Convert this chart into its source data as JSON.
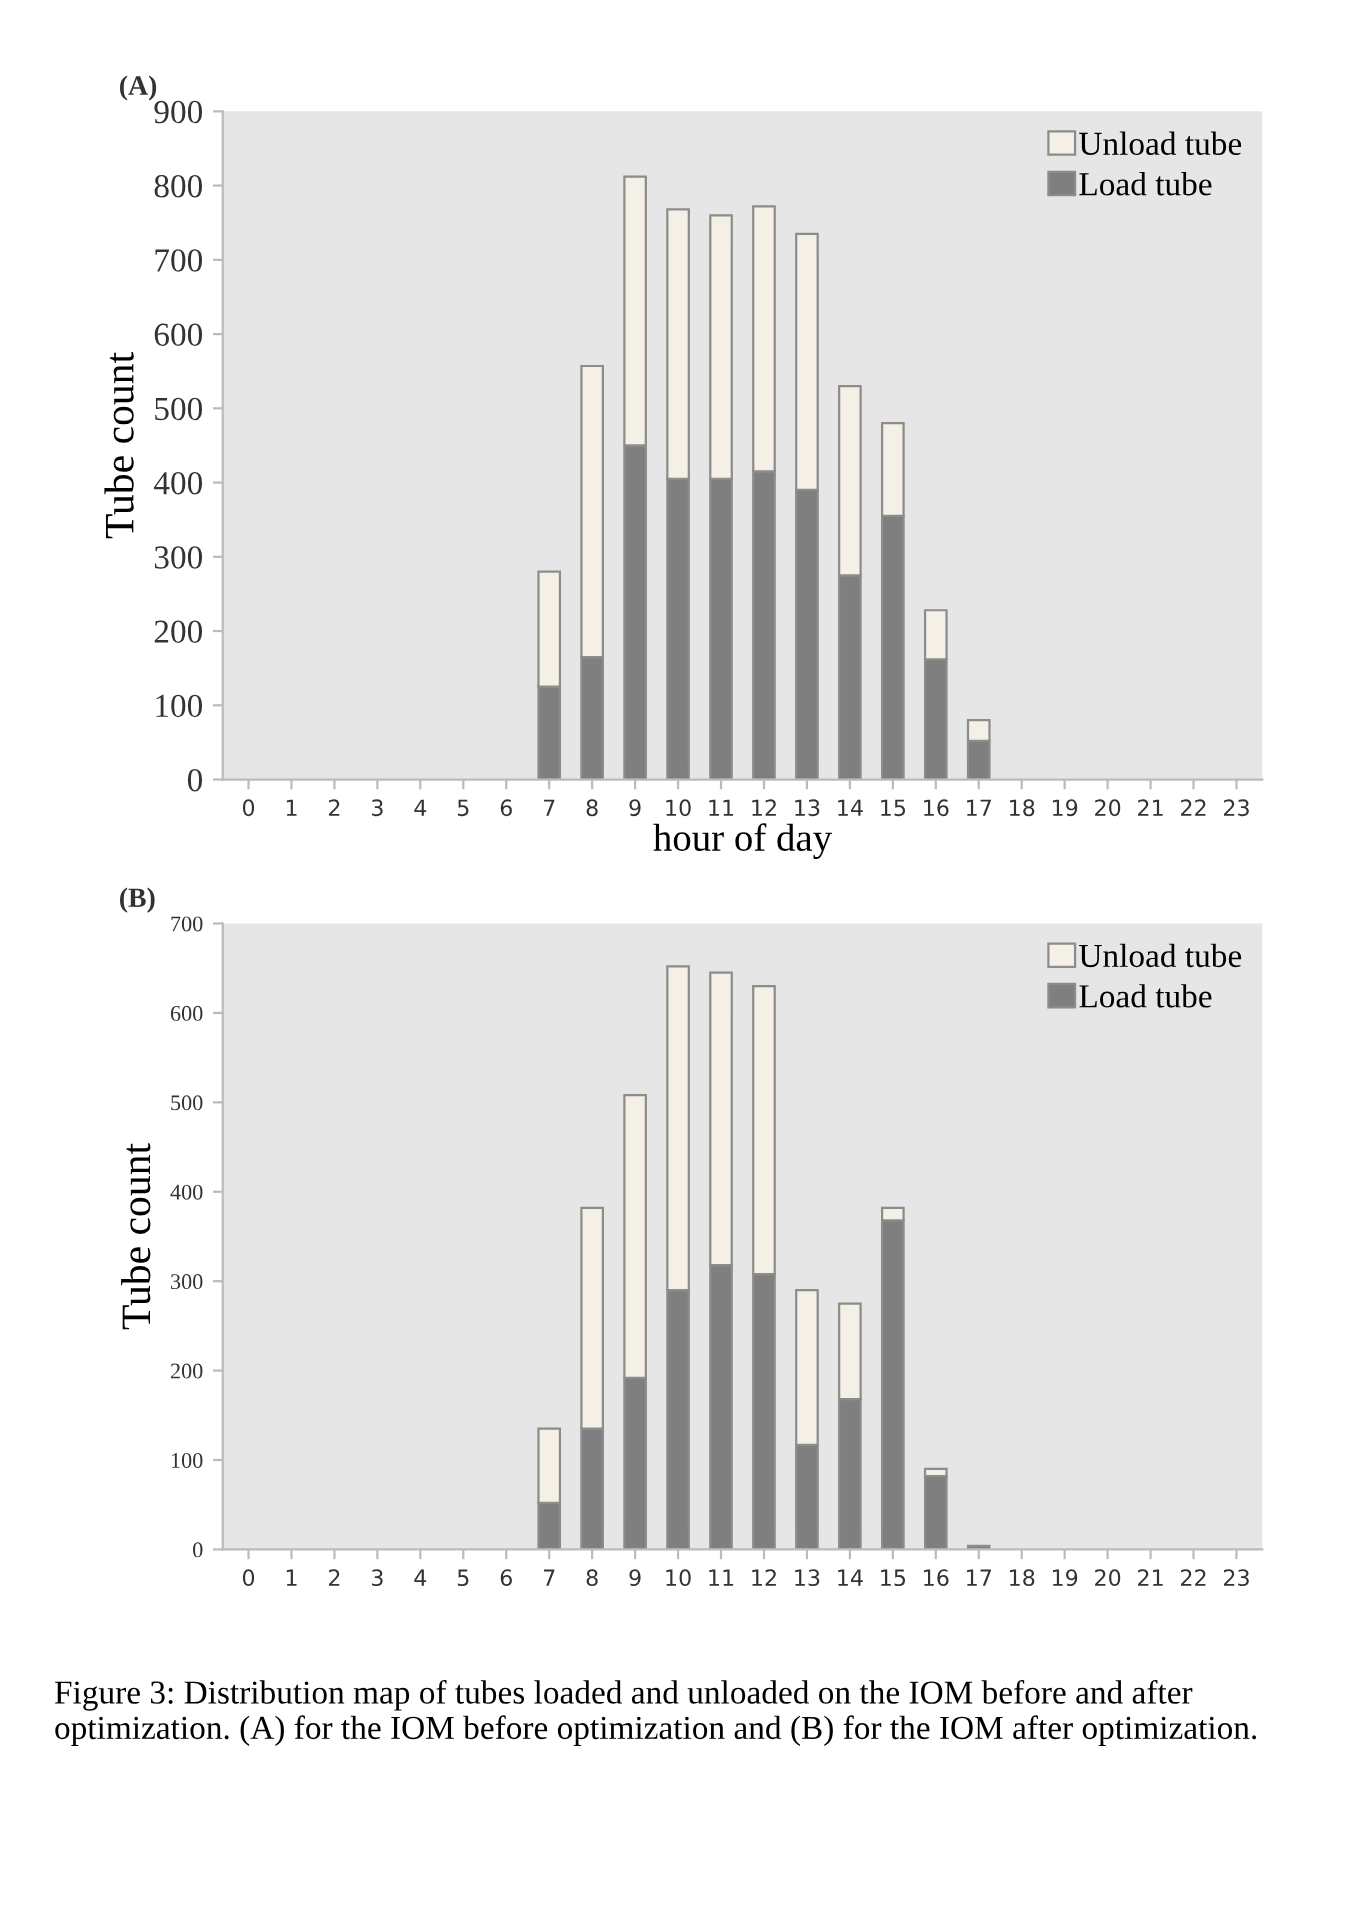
{
  "chart_data": [
    {
      "type": "bar",
      "title": "(A)",
      "ylabel": "Tube count",
      "xlabel": "hour of day",
      "stacked": true,
      "categories": [
        "0",
        "1",
        "2",
        "3",
        "4",
        "5",
        "6",
        "7",
        "8",
        "9",
        "10",
        "11",
        "12",
        "13",
        "14",
        "15",
        "16",
        "17",
        "18",
        "19",
        "20",
        "21",
        "22",
        "23"
      ],
      "series": [
        {
          "name": "Load tube",
          "color": "#7f7f7f",
          "values": [
            0,
            0,
            0,
            0,
            0,
            0,
            0,
            125,
            165,
            450,
            405,
            405,
            415,
            390,
            275,
            355,
            162,
            52,
            0,
            0,
            0,
            0,
            0,
            0
          ]
        },
        {
          "name": "Unload tube",
          "color": "#f5f0e6",
          "values": [
            0,
            0,
            0,
            0,
            0,
            0,
            0,
            155,
            392,
            362,
            363,
            355,
            357,
            345,
            255,
            125,
            66,
            28,
            0,
            0,
            0,
            0,
            0,
            0
          ]
        }
      ],
      "ylim": [
        0,
        900
      ],
      "yticks": [
        0,
        100,
        200,
        300,
        400,
        500,
        600,
        700,
        800,
        900
      ],
      "grid": false,
      "legend": "top right"
    },
    {
      "type": "bar",
      "title": "(B)",
      "ylabel": "Tube count",
      "stacked": true,
      "categories": [
        "0",
        "1",
        "2",
        "3",
        "4",
        "5",
        "6",
        "7",
        "8",
        "9",
        "10",
        "11",
        "12",
        "13",
        "14",
        "15",
        "16",
        "17",
        "18",
        "19",
        "20",
        "21",
        "22",
        "23"
      ],
      "series": [
        {
          "name": "Load tube",
          "color": "#7f7f7f",
          "values": [
            0,
            0,
            0,
            0,
            0,
            0,
            0,
            52,
            135,
            192,
            290,
            318,
            308,
            117,
            168,
            368,
            82,
            4,
            0,
            0,
            0,
            0,
            0,
            0
          ]
        },
        {
          "name": "Unload tube",
          "color": "#f5f0e6",
          "values": [
            0,
            0,
            0,
            0,
            0,
            0,
            0,
            83,
            247,
            316,
            362,
            327,
            322,
            173,
            107,
            14,
            8,
            0,
            0,
            0,
            0,
            0,
            0,
            0
          ]
        }
      ],
      "ylim": [
        0,
        700
      ],
      "yticks": [
        0,
        100,
        200,
        300,
        400,
        500,
        600,
        700
      ],
      "grid": false,
      "legend": "top right",
      "annotations": [
        "Figure 3: Distribution map of tubes loaded and unloaded on the IOM before and after optimization. (A) for the IOM before optimization and (B) for the IOM after optimization."
      ]
    }
  ]
}
